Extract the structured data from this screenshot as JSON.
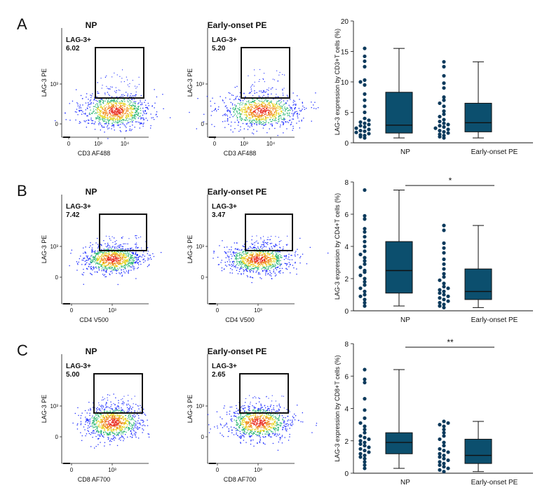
{
  "colors": {
    "box_fill": "#0c4f6e",
    "dot": "#0c3a5c",
    "gate": "#111111",
    "density": [
      "#1d2cff",
      "#2bb673",
      "#e6d21a",
      "#f08a1c",
      "#e8271d"
    ]
  },
  "panels": [
    {
      "letter": "A",
      "flow": [
        {
          "title": "NP",
          "gate_name": "LAG-3+",
          "gate_pct": "6.02",
          "x_label": "CD3 AF488",
          "y_label": "LAG-3 PE",
          "x_ticks": [
            "0",
            "10³",
            "10⁴"
          ],
          "y_ticks": [
            "10³",
            "0"
          ]
        },
        {
          "title": "Early-onset PE",
          "gate_name": "LAG-3+",
          "gate_pct": "5.20",
          "x_label": "CD3 AF488",
          "y_label": "LAG-3 PE",
          "x_ticks": [
            "0",
            "10³",
            "10⁴"
          ],
          "y_ticks": [
            "10³",
            "0"
          ]
        }
      ]
    },
    {
      "letter": "B",
      "flow": [
        {
          "title": "NP",
          "gate_name": "LAG-3+",
          "gate_pct": "7.42",
          "x_label": "CD4 V500",
          "y_label": "LAG-3 PE",
          "x_ticks": [
            "0",
            "10³"
          ],
          "y_ticks": [
            "10³",
            "0"
          ]
        },
        {
          "title": "Early-onset PE",
          "gate_name": "LAG-3+",
          "gate_pct": "3.47",
          "x_label": "CD4 V500",
          "y_label": "LAG-3 PE",
          "x_ticks": [
            "0",
            "10³"
          ],
          "y_ticks": [
            "10³",
            "0"
          ]
        }
      ]
    },
    {
      "letter": "C",
      "flow": [
        {
          "title": "NP",
          "gate_name": "LAG-3+",
          "gate_pct": "5.00",
          "x_label": "CD8 AF700",
          "y_label": "LAG-3 PE",
          "x_ticks": [
            "0",
            "10³"
          ],
          "y_ticks": [
            "10³",
            "0"
          ]
        },
        {
          "title": "Early-onset PE",
          "gate_name": "LAG-3+",
          "gate_pct": "2.65",
          "x_label": "CD8 AF700",
          "y_label": "LAG-3 PE",
          "x_ticks": [
            "0",
            "10³"
          ],
          "y_ticks": [
            "10³",
            "0"
          ]
        }
      ]
    }
  ],
  "chart_data": [
    {
      "type": "box",
      "ylabel": "LAG-3 expression by CD3+T cells (%)",
      "ylim": [
        0,
        20
      ],
      "yticks": [
        0,
        5,
        10,
        15,
        20
      ],
      "categories": [
        "NP",
        "Early-onset PE"
      ],
      "boxes": [
        {
          "category": "NP",
          "min": 0.8,
          "q1": 1.6,
          "median": 2.9,
          "q3": 8.3,
          "max": 15.5
        },
        {
          "category": "Early-onset PE",
          "min": 0.8,
          "q1": 1.8,
          "median": 3.3,
          "q3": 6.5,
          "max": 13.3
        }
      ],
      "points": [
        [
          0.8,
          1.0,
          1.2,
          1.3,
          1.5,
          1.7,
          1.9,
          2.0,
          2.2,
          2.4,
          2.6,
          2.8,
          3.0,
          3.2,
          3.4,
          3.7,
          4.0,
          5.0,
          6.0,
          7.0,
          8.0,
          9.5,
          10.0,
          10.3,
          12.5,
          13.4,
          14.2,
          15.5
        ],
        [
          0.8,
          1.0,
          1.2,
          1.4,
          1.6,
          1.8,
          2.0,
          2.2,
          2.4,
          2.6,
          2.8,
          3.0,
          3.2,
          3.5,
          3.8,
          4.3,
          4.7,
          5.2,
          6.0,
          6.5,
          7.0,
          7.5,
          9.0,
          9.8,
          11.0,
          12.5,
          13.3
        ]
      ],
      "significance": ""
    },
    {
      "type": "box",
      "ylabel": "LAG-3 expression by CD4+T cells (%)",
      "ylim": [
        0,
        8
      ],
      "yticks": [
        0,
        2,
        4,
        6,
        8
      ],
      "categories": [
        "NP",
        "Early-onset PE"
      ],
      "boxes": [
        {
          "category": "NP",
          "min": 0.3,
          "q1": 1.1,
          "median": 2.5,
          "q3": 4.3,
          "max": 7.5
        },
        {
          "category": "Early-onset PE",
          "min": 0.2,
          "q1": 0.7,
          "median": 1.2,
          "q3": 2.6,
          "max": 5.3
        }
      ],
      "points": [
        [
          0.3,
          0.5,
          0.7,
          0.9,
          1.0,
          1.2,
          1.4,
          1.6,
          1.8,
          2.0,
          2.2,
          2.4,
          2.5,
          2.7,
          2.9,
          3.1,
          3.3,
          3.5,
          3.7,
          4.0,
          4.3,
          4.6,
          4.9,
          5.1,
          5.7,
          5.9,
          7.5
        ],
        [
          0.2,
          0.3,
          0.4,
          0.5,
          0.6,
          0.7,
          0.8,
          0.9,
          1.0,
          1.1,
          1.2,
          1.3,
          1.4,
          1.5,
          1.7,
          1.9,
          2.1,
          2.3,
          2.6,
          2.9,
          3.2,
          3.6,
          3.9,
          4.2,
          5.0,
          5.3
        ]
      ],
      "significance": "*"
    },
    {
      "type": "box",
      "ylabel": "LAG-3 expression by CD8+T cells (%)",
      "ylim": [
        0,
        8
      ],
      "yticks": [
        0,
        2,
        4,
        6,
        8
      ],
      "categories": [
        "NP",
        "Early-onset PE"
      ],
      "boxes": [
        {
          "category": "NP",
          "min": 0.3,
          "q1": 1.2,
          "median": 1.9,
          "q3": 2.5,
          "max": 6.4
        },
        {
          "category": "Early-onset PE",
          "min": 0.1,
          "q1": 0.6,
          "median": 1.1,
          "q3": 2.1,
          "max": 3.2
        }
      ],
      "points": [
        [
          0.3,
          0.5,
          0.7,
          0.9,
          1.0,
          1.1,
          1.2,
          1.3,
          1.4,
          1.5,
          1.6,
          1.7,
          1.8,
          1.9,
          2.0,
          2.1,
          2.2,
          2.3,
          2.5,
          2.7,
          2.9,
          3.1,
          3.4,
          3.9,
          4.6,
          5.6,
          5.8,
          6.4
        ],
        [
          0.1,
          0.2,
          0.3,
          0.4,
          0.5,
          0.6,
          0.7,
          0.8,
          0.9,
          1.0,
          1.1,
          1.2,
          1.3,
          1.4,
          1.5,
          1.7,
          1.9,
          2.1,
          2.3,
          2.5,
          2.7,
          2.9,
          3.0,
          3.1,
          3.2
        ]
      ],
      "significance": "**"
    }
  ]
}
